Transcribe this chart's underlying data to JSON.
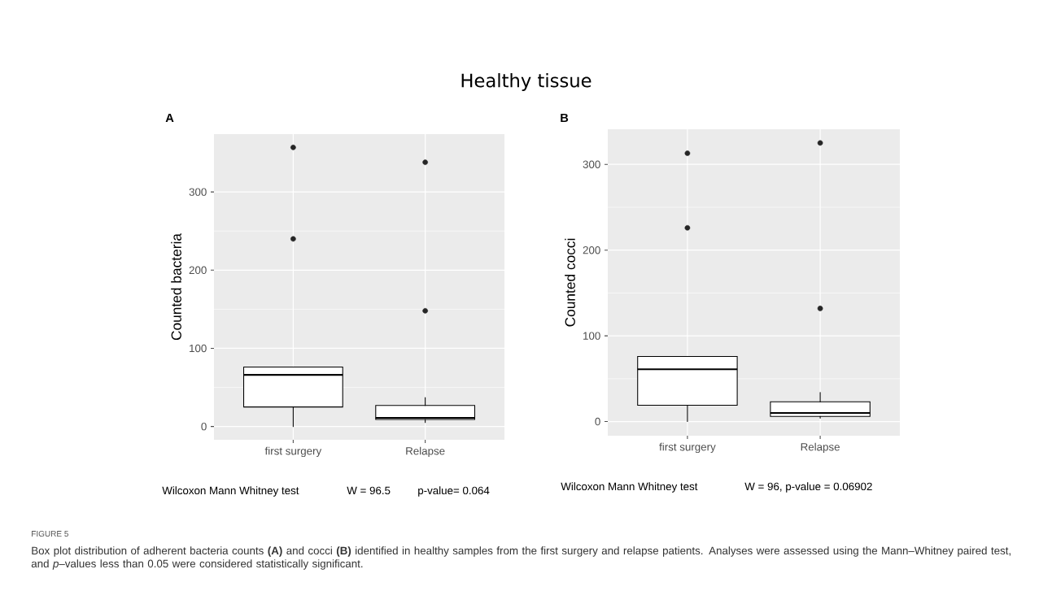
{
  "chart_data": [
    {
      "type": "box",
      "title": "Healthy tissue",
      "subtitle": "A",
      "ylabel": "Counted bacteria",
      "categories": [
        "first surgery",
        "Relapse"
      ],
      "boxes": [
        {
          "low": 0,
          "q1": 25,
          "median": 66,
          "q3": 76,
          "high": 76,
          "outliers": [
            357,
            240
          ]
        },
        {
          "low": 5,
          "q1": 9,
          "median": 11,
          "q3": 27,
          "high": 37,
          "outliers": [
            338,
            148
          ]
        }
      ],
      "ylim": [
        -17,
        374
      ],
      "yticks": [
        0,
        100,
        200,
        300
      ],
      "grid": true,
      "annotations": [
        "Wilcoxon Mann Whitney test",
        "W = 96.5",
        "p-value= 0.064"
      ]
    },
    {
      "type": "box",
      "subtitle": "B",
      "ylabel": "Counted cocci",
      "categories": [
        "first surgery",
        "Relapse"
      ],
      "boxes": [
        {
          "low": 0,
          "q1": 19,
          "median": 61,
          "q3": 76,
          "high": 76,
          "outliers": [
            313,
            226
          ]
        },
        {
          "low": 4,
          "q1": 6,
          "median": 10,
          "q3": 23,
          "high": 34,
          "outliers": [
            325,
            132
          ]
        }
      ],
      "ylim": [
        -16.5,
        341
      ],
      "yticks": [
        0,
        100,
        200,
        300
      ],
      "grid": true,
      "annotations": [
        "Wilcoxon Mann Whitney test",
        "W = 96, p-value = 0.06902",
        "FIGURE 5",
        "Box plot distribution of adherent bacteria counts **(A)** and cocci **(B)** identified in healthy samples from the first surgery and relapse patients. Analyses were assessed using the Mann–Whitney paired test, and *p*–values less than 0.05 were considered statistically significant."
      ]
    }
  ]
}
